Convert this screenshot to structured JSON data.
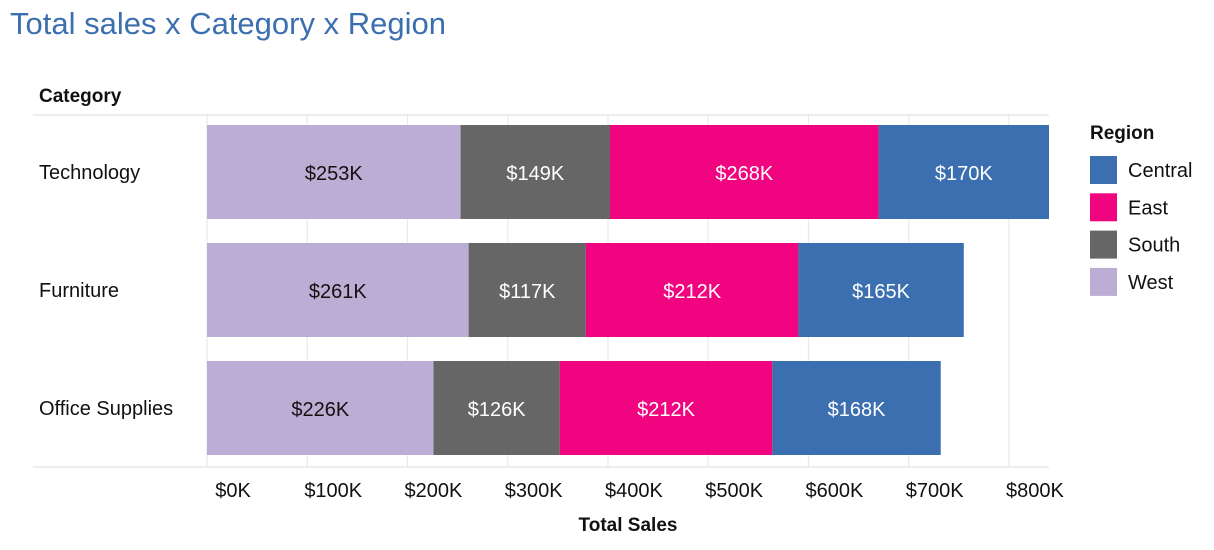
{
  "chart_data": {
    "type": "stacked-bar-horizontal",
    "title": "Total sales x Category x Region",
    "row_header": "Category",
    "xlabel": "Total Sales",
    "xlim": [
      0,
      840000
    ],
    "ticks": [
      {
        "value": 0,
        "label": "$0K"
      },
      {
        "value": 100000,
        "label": "$100K"
      },
      {
        "value": 200000,
        "label": "$200K"
      },
      {
        "value": 300000,
        "label": "$300K"
      },
      {
        "value": 400000,
        "label": "$400K"
      },
      {
        "value": 500000,
        "label": "$500K"
      },
      {
        "value": 600000,
        "label": "$600K"
      },
      {
        "value": 700000,
        "label": "$700K"
      },
      {
        "value": 800000,
        "label": "$800K"
      }
    ],
    "categories": [
      "Technology",
      "Furniture",
      "Office Supplies"
    ],
    "stack_order": [
      "West",
      "South",
      "East",
      "Central"
    ],
    "series": [
      {
        "name": "West",
        "color": "#bcadd4",
        "label_color": "#111111",
        "values": [
          253000,
          261000,
          226000
        ],
        "labels": [
          "$253K",
          "$261K",
          "$226K"
        ]
      },
      {
        "name": "South",
        "color": "#666666",
        "label_color": "#ffffff",
        "values": [
          149000,
          117000,
          126000
        ],
        "labels": [
          "$149K",
          "$117K",
          "$126K"
        ]
      },
      {
        "name": "East",
        "color": "#f0047f",
        "label_color": "#ffffff",
        "values": [
          268000,
          212000,
          212000
        ],
        "labels": [
          "$268K",
          "$212K",
          "$212K"
        ]
      },
      {
        "name": "Central",
        "color": "#3c6fb0",
        "label_color": "#ffffff",
        "values": [
          170000,
          165000,
          168000
        ],
        "labels": [
          "$170K",
          "$165K",
          "$168K"
        ]
      }
    ],
    "legend": {
      "title": "Region",
      "placement": "right",
      "items": [
        "Central",
        "East",
        "South",
        "West"
      ]
    }
  }
}
